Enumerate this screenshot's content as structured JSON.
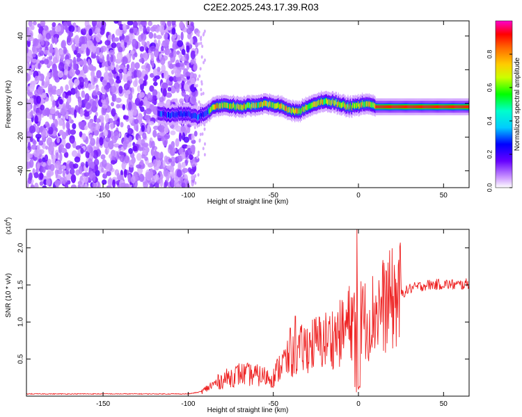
{
  "title": "C2E2.2025.243.17.39.R03",
  "chart_data": [
    {
      "type": "heatmap",
      "title": "C2E2.2025.243.17.39.R03",
      "xlabel": "Height of straight line (km)",
      "ylabel": "Frequency (Hz)",
      "xlim": [
        -195,
        65
      ],
      "ylim": [
        -50,
        49
      ],
      "x_ticks": [
        -150,
        -100,
        -50,
        0,
        50
      ],
      "y_ticks": [
        -40,
        -20,
        0,
        20,
        40
      ],
      "colorbar": {
        "label": "Normalized spectral amplitude",
        "range": [
          0.0,
          1.0
        ],
        "ticks": [
          0.0,
          0.2,
          0.4,
          0.6,
          0.8
        ],
        "tick_labels": [
          "0.0",
          "0.2",
          "0.4",
          "0.6",
          "0.8"
        ],
        "colormap": [
          "#ffffff",
          "#6600ff",
          "#0000ff",
          "#00ffff",
          "#00ff00",
          "#ffff00",
          "#ff9900",
          "#ff0000",
          "#ff00ff"
        ]
      },
      "signal_trace": {
        "x": [
          -118,
          -110,
          -100,
          -95,
          -90,
          -85,
          -80,
          -70,
          -60,
          -55,
          -50,
          -45,
          -40,
          -35,
          -30,
          -25,
          -20,
          -15,
          -10,
          -5,
          0,
          5,
          10,
          20,
          30,
          40,
          50,
          60,
          65
        ],
        "y": [
          -6,
          -7,
          -6,
          -8,
          -6,
          -2,
          -1,
          -2,
          -1,
          0,
          -1,
          -2,
          -4,
          -5,
          -2,
          0,
          1,
          1,
          -1,
          -2,
          -1,
          0,
          -2,
          -2,
          -2,
          -2,
          -2,
          -2,
          -2
        ]
      },
      "noise_region_x": [
        -195,
        -95
      ]
    },
    {
      "type": "line",
      "xlabel": "Height of straight line (km)",
      "ylabel": "SNR (10 * v/v)",
      "y_scale_label": "(x10",
      "y_scale_exponent": "4",
      "xlim": [
        -195,
        65
      ],
      "ylim": [
        0,
        22500
      ],
      "x_ticks": [
        -150,
        -100,
        -50,
        0,
        50
      ],
      "y_ticks": [
        5000,
        10000,
        15000,
        20000
      ],
      "y_tick_labels": [
        "0.5",
        "1.0",
        "1.5",
        "2.0"
      ],
      "color": "#ee2222",
      "series": [
        {
          "x": [
            -195,
            -150,
            -100,
            -92,
            -88,
            -80,
            -70,
            -60,
            -50,
            -45,
            -40,
            -35,
            -30,
            -20,
            -10,
            -5,
            -2,
            0,
            2,
            5,
            10,
            20,
            30,
            40,
            50,
            60,
            65
          ],
          "y": [
            300,
            300,
            300,
            600,
            1200,
            2200,
            3000,
            2800,
            2500,
            4500,
            5000,
            6000,
            6800,
            7500,
            8500,
            10000,
            11000,
            9000,
            11000,
            10000,
            11500,
            13000,
            14500,
            15000,
            15100,
            15000,
            15200
          ]
        }
      ],
      "spikes": [
        {
          "x": -1,
          "y": 22500
        },
        {
          "x": -37,
          "y": 10800
        },
        {
          "x": -40,
          "y": 9200
        }
      ]
    }
  ]
}
